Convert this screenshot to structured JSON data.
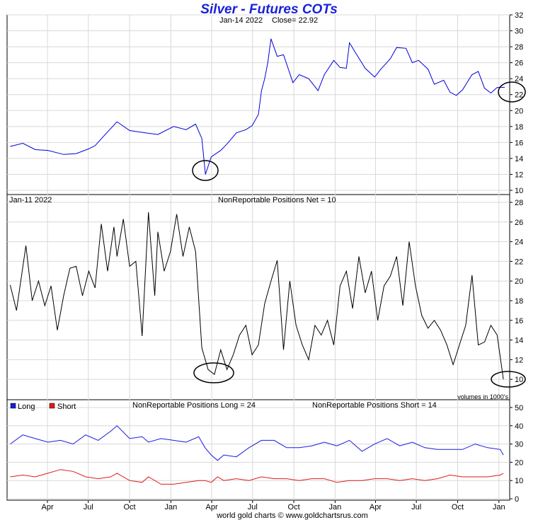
{
  "title": "Silver - Futures COTs",
  "footer": "world gold charts © www.goldchartsrus.com",
  "panels": {
    "price": {
      "date": "Jan-14  2022",
      "close_label": "Close= 22.92"
    },
    "net": {
      "date": "Jan-11  2022",
      "label": "NonReportable Positions Net = 10",
      "units_note": "volumes in 1000's"
    },
    "longshort": {
      "legend_long": "Long",
      "legend_short": "Short",
      "label_long": "NonReportable Positions Long = 24",
      "label_short": "NonReportable Positions Short = 14"
    }
  },
  "colors": {
    "price": "#0000dd",
    "net": "#000000",
    "long": "#1a1ae0",
    "short": "#e01a1a",
    "title": "#1a23d6",
    "grid": "#d8d8d8"
  },
  "chart_data": [
    {
      "type": "line",
      "name": "price",
      "ylim": [
        10,
        32
      ],
      "yticks": [
        10,
        12,
        14,
        16,
        18,
        20,
        22,
        24,
        26,
        28,
        30,
        32
      ],
      "x_month_labels": [
        "Apr",
        "Jul",
        "Oct",
        "Jan",
        "Apr",
        "Jul",
        "Oct",
        "Jan",
        "Apr",
        "Jul",
        "Oct",
        "Jan"
      ],
      "x": [
        "2019-01-08",
        "2019-02-05",
        "2019-03-05",
        "2019-04-02",
        "2019-05-07",
        "2019-06-04",
        "2019-07-02",
        "2019-07-16",
        "2019-08-06",
        "2019-09-03",
        "2019-10-01",
        "2019-11-05",
        "2019-12-03",
        "2020-01-07",
        "2020-02-04",
        "2020-02-25",
        "2020-03-10",
        "2020-03-18",
        "2020-03-31",
        "2020-04-21",
        "2020-05-05",
        "2020-05-26",
        "2020-06-16",
        "2020-06-30",
        "2020-07-14",
        "2020-07-21",
        "2020-07-28",
        "2020-08-04",
        "2020-08-11",
        "2020-08-25",
        "2020-09-08",
        "2020-09-29",
        "2020-10-13",
        "2020-11-03",
        "2020-11-24",
        "2020-12-08",
        "2020-12-29",
        "2021-01-12",
        "2021-01-26",
        "2021-02-02",
        "2021-02-16",
        "2021-03-09",
        "2021-03-30",
        "2021-04-13",
        "2021-05-04",
        "2021-05-18",
        "2021-06-08",
        "2021-06-22",
        "2021-07-06",
        "2021-07-27",
        "2021-08-10",
        "2021-08-31",
        "2021-09-14",
        "2021-09-28",
        "2021-10-12",
        "2021-11-02",
        "2021-11-16",
        "2021-11-30",
        "2021-12-14",
        "2021-12-28",
        "2022-01-14"
      ],
      "y": [
        15.5,
        15.9,
        15.1,
        15.0,
        14.5,
        14.6,
        15.2,
        15.6,
        16.9,
        18.6,
        17.5,
        17.2,
        17.0,
        18.0,
        17.6,
        18.3,
        16.5,
        12.0,
        14.2,
        15.0,
        15.8,
        17.2,
        17.6,
        18.1,
        19.5,
        22.5,
        24.0,
        26.0,
        29.0,
        26.8,
        27.0,
        23.5,
        24.5,
        24.0,
        22.5,
        24.5,
        26.3,
        25.4,
        25.3,
        28.5,
        27.2,
        25.3,
        24.2,
        25.2,
        26.5,
        27.9,
        27.8,
        26.0,
        26.3,
        25.2,
        23.3,
        23.8,
        22.3,
        21.9,
        22.6,
        24.5,
        24.9,
        22.8,
        22.2,
        22.9,
        22.92
      ]
    },
    {
      "type": "line",
      "name": "net",
      "ylim": [
        8,
        28
      ],
      "yticks": [
        10,
        12,
        14,
        16,
        18,
        20,
        22,
        24,
        26,
        28
      ],
      "y_annotation": "volumes in 1000's",
      "x": [
        "2019-01-08",
        "2019-01-22",
        "2019-02-12",
        "2019-02-26",
        "2019-03-12",
        "2019-03-26",
        "2019-04-09",
        "2019-04-23",
        "2019-05-07",
        "2019-05-21",
        "2019-06-04",
        "2019-06-18",
        "2019-07-02",
        "2019-07-16",
        "2019-07-30",
        "2019-08-13",
        "2019-08-27",
        "2019-09-03",
        "2019-09-17",
        "2019-10-01",
        "2019-10-15",
        "2019-10-29",
        "2019-11-12",
        "2019-11-26",
        "2019-12-03",
        "2019-12-17",
        "2019-12-31",
        "2020-01-14",
        "2020-01-28",
        "2020-02-11",
        "2020-02-25",
        "2020-03-10",
        "2020-03-24",
        "2020-04-07",
        "2020-04-21",
        "2020-05-05",
        "2020-05-19",
        "2020-06-02",
        "2020-06-16",
        "2020-06-30",
        "2020-07-14",
        "2020-07-28",
        "2020-08-11",
        "2020-08-25",
        "2020-09-08",
        "2020-09-22",
        "2020-10-06",
        "2020-10-20",
        "2020-11-03",
        "2020-11-17",
        "2020-12-01",
        "2020-12-15",
        "2020-12-29",
        "2021-01-12",
        "2021-01-26",
        "2021-02-09",
        "2021-02-23",
        "2021-03-09",
        "2021-03-23",
        "2021-04-06",
        "2021-04-20",
        "2021-05-04",
        "2021-05-18",
        "2021-06-01",
        "2021-06-15",
        "2021-06-29",
        "2021-07-13",
        "2021-07-27",
        "2021-08-10",
        "2021-08-24",
        "2021-09-07",
        "2021-09-21",
        "2021-10-05",
        "2021-10-19",
        "2021-11-02",
        "2021-11-16",
        "2021-11-30",
        "2021-12-14",
        "2021-12-28",
        "2022-01-11"
      ],
      "y": [
        19.6,
        17.0,
        23.6,
        18.0,
        20.0,
        17.5,
        19.5,
        15.0,
        18.5,
        21.3,
        21.5,
        18.5,
        21.0,
        19.3,
        25.8,
        21.0,
        25.5,
        22.5,
        26.3,
        21.5,
        22.0,
        14.4,
        27.0,
        18.5,
        25.0,
        21.0,
        23.0,
        26.8,
        22.5,
        25.5,
        23.0,
        13.2,
        11.0,
        10.5,
        13.0,
        11.0,
        12.5,
        14.5,
        15.5,
        12.5,
        13.5,
        17.7,
        20.0,
        22.1,
        13.0,
        20.0,
        15.5,
        13.5,
        12.0,
        15.5,
        14.5,
        16.0,
        13.5,
        19.5,
        21.0,
        17.2,
        22.5,
        18.8,
        21.0,
        16.0,
        19.5,
        20.5,
        22.5,
        17.5,
        24.0,
        19.5,
        16.5,
        15.2,
        16.0,
        15.0,
        13.5,
        11.5,
        13.5,
        15.5,
        20.6,
        13.5,
        13.8,
        15.5,
        14.5,
        10.0
      ]
    },
    {
      "type": "line",
      "name": "longshort",
      "ylim": [
        0,
        50
      ],
      "yticks": [
        0,
        10,
        20,
        30,
        40,
        50
      ],
      "x": [
        "2019-01-08",
        "2019-02-05",
        "2019-03-05",
        "2019-04-02",
        "2019-04-30",
        "2019-05-28",
        "2019-06-25",
        "2019-07-23",
        "2019-08-20",
        "2019-09-03",
        "2019-10-01",
        "2019-10-29",
        "2019-11-12",
        "2019-12-10",
        "2020-01-07",
        "2020-02-04",
        "2020-03-03",
        "2020-03-17",
        "2020-03-31",
        "2020-04-14",
        "2020-04-28",
        "2020-05-26",
        "2020-06-23",
        "2020-07-21",
        "2020-08-18",
        "2020-09-15",
        "2020-10-13",
        "2020-11-10",
        "2020-12-08",
        "2021-01-05",
        "2021-02-02",
        "2021-03-02",
        "2021-03-30",
        "2021-04-27",
        "2021-05-25",
        "2021-06-22",
        "2021-07-20",
        "2021-08-17",
        "2021-09-14",
        "2021-10-12",
        "2021-11-09",
        "2021-12-07",
        "2022-01-04",
        "2022-01-11"
      ],
      "series": [
        {
          "name": "Long",
          "values": [
            30,
            35,
            33,
            31,
            32,
            30,
            35,
            32,
            37,
            40,
            33,
            34,
            31,
            33,
            32,
            31,
            34,
            28,
            24,
            21,
            24,
            23,
            28,
            32,
            32,
            28,
            28,
            29,
            31,
            29,
            32,
            26,
            30,
            33,
            29,
            31,
            28,
            27,
            27,
            27,
            30,
            28,
            27,
            24
          ]
        },
        {
          "name": "Short",
          "values": [
            12,
            13,
            12,
            14,
            16,
            15,
            12,
            11,
            12,
            14,
            10,
            9,
            12,
            8,
            8,
            9,
            10,
            10,
            9,
            12,
            10,
            11,
            10,
            12,
            11,
            11,
            10,
            11,
            11,
            9,
            10,
            10,
            11,
            11,
            10,
            11,
            10,
            11,
            13,
            12,
            12,
            12,
            13,
            14
          ]
        }
      ]
    }
  ]
}
